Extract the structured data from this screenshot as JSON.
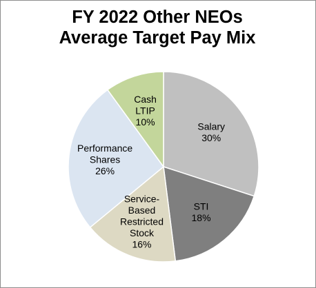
{
  "chart_data": {
    "type": "pie",
    "title_lines": [
      "FY 2022 Other NEOs",
      "Average Target Pay Mix"
    ],
    "slices": [
      {
        "label_lines": [
          "Salary"
        ],
        "value": 30,
        "value_label": "30%",
        "color": "#c0c0c0"
      },
      {
        "label_lines": [
          "STI"
        ],
        "value": 18,
        "value_label": "18%",
        "color": "#7f7f7f"
      },
      {
        "label_lines": [
          "Service-",
          "Based",
          "Restricted",
          "Stock"
        ],
        "value": 16,
        "value_label": "16%",
        "color": "#ddd9c3"
      },
      {
        "label_lines": [
          "Performance",
          "Shares"
        ],
        "value": 26,
        "value_label": "26%",
        "color": "#dbe5f1"
      },
      {
        "label_lines": [
          "Cash",
          "LTIP"
        ],
        "value": 10,
        "value_label": "10%",
        "color": "#c3d69b"
      }
    ],
    "start_angle_deg": 0,
    "direction": "clockwise",
    "legend": "none"
  }
}
